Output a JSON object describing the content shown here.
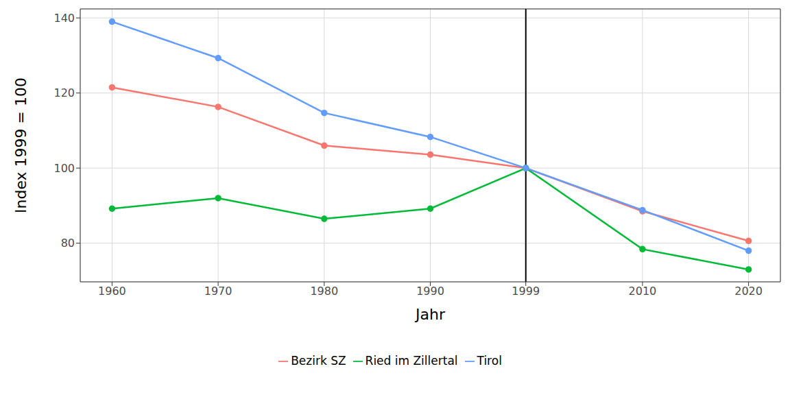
{
  "chart_data": {
    "type": "line",
    "x_label": "Jahr",
    "y_label": "Index 1999 = 100",
    "x": [
      1960,
      1970,
      1980,
      1990,
      1999,
      2010,
      2020
    ],
    "series": [
      {
        "name": "Bezirk SZ",
        "color": "#F8766D",
        "values": [
          121.5,
          116.3,
          106,
          103.6,
          100,
          88.5,
          80.6
        ],
        "marker": "circle"
      },
      {
        "name": "Ried im Zillertal",
        "color": "#00BA38",
        "values": [
          89.2,
          92,
          86.5,
          89.2,
          100,
          78.4,
          73
        ],
        "marker": "circle"
      },
      {
        "name": "Tirol",
        "color": "#619CFF",
        "values": [
          139,
          129.3,
          114.7,
          108.3,
          100,
          88.8,
          78
        ],
        "marker": "circle"
      }
    ],
    "xlim": [
      1957,
      2023
    ],
    "xticks": [
      1960,
      1970,
      1980,
      1990,
      1999,
      2010,
      2020
    ],
    "ylim": [
      69.7,
      142.4
    ],
    "yticks": [
      80,
      100,
      120,
      140
    ],
    "vline": 1999,
    "grid": true,
    "legend": "bottom"
  }
}
